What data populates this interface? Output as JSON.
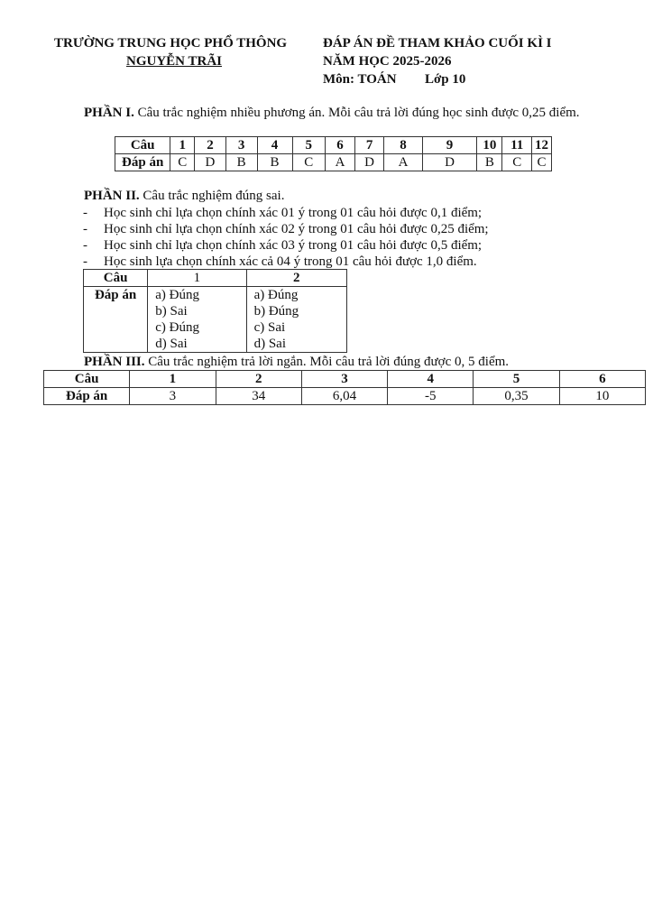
{
  "header": {
    "school_line1": "TRƯỜNG TRUNG HỌC PHỔ THÔNG",
    "school_line2": "NGUYỄN TRÃI",
    "title": "ĐÁP ÁN ĐỀ THAM KHẢO CUỐI KÌ I",
    "year": "NĂM HỌC 2025-2026",
    "subject": "Môn: TOÁN",
    "grade": "Lớp 10"
  },
  "part1": {
    "heading": "PHẦN I.",
    "text": " Câu trắc nghiệm nhiều phương án. Mỗi câu trả lời đúng học sinh được 0,25 điểm.",
    "row_label_q": "Câu",
    "row_label_a": "Đáp án",
    "questions": [
      "1",
      "2",
      "3",
      "4",
      "5",
      "6",
      "7",
      "8",
      "9",
      "10",
      "11",
      "12"
    ],
    "answers": [
      "C",
      "D",
      "B",
      "B",
      "C",
      "A",
      "D",
      "A",
      "D",
      "B",
      "C",
      "C"
    ]
  },
  "part2": {
    "heading": "PHẦN II.",
    "text": " Câu trắc nghiệm đúng sai.",
    "bullets": [
      "Học sinh chỉ lựa chọn chính xác 01 ý trong 01 câu hỏi được 0,1 điểm;",
      "Học sinh chỉ lựa chọn chính xác 02 ý trong 01 câu hỏi được 0,25 điểm;",
      "Học sinh chỉ lựa chọn chính xác 03 ý trong 01 câu hỏi được 0,5 điểm;",
      "Học sinh lựa chọn chính xác cả 04 ý trong 01 câu hỏi được 1,0 điểm."
    ],
    "bullet_mark": "-",
    "row_label_q": "Câu",
    "row_label_a": "Đáp án",
    "questions": [
      "1",
      "2"
    ],
    "answers": [
      [
        "a) Đúng",
        "b) Sai",
        "c) Đúng",
        "d) Sai"
      ],
      [
        "a) Đúng",
        "b) Đúng",
        "c) Sai",
        "d) Sai"
      ]
    ]
  },
  "part3": {
    "heading": "PHẦN III.",
    "text": " Câu trắc nghiệm trả lời ngắn. Mỗi câu trả lời đúng được 0, 5 điểm.",
    "row_label_q": "Câu",
    "row_label_a": "Đáp án",
    "questions": [
      "1",
      "2",
      "3",
      "4",
      "5",
      "6"
    ],
    "answers": [
      "3",
      "34",
      "6,04",
      "-5",
      "0,35",
      "10"
    ]
  }
}
